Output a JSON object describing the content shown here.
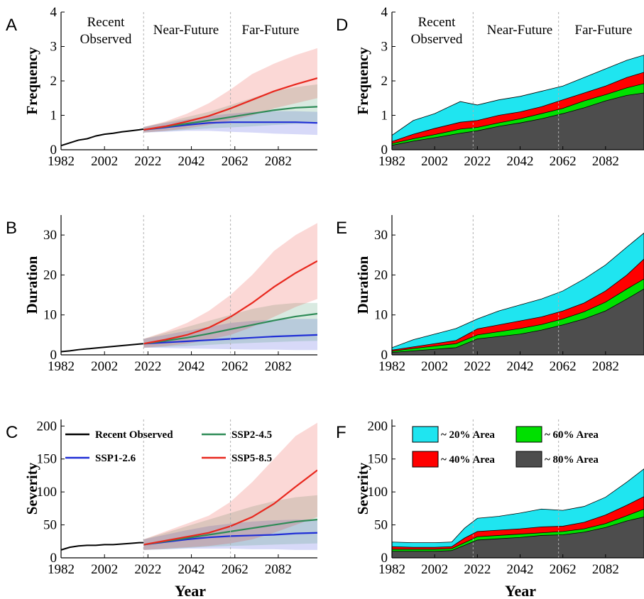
{
  "periods": {
    "recent_line1": "Recent",
    "recent_line2": "Observed",
    "near": "Near-Future",
    "far": "Far-Future"
  },
  "x_label": "Year",
  "colors": {
    "observed": "#000000",
    "ssp126": "#1f2ed6",
    "ssp245": "#2e8b57",
    "ssp585": "#e8281e",
    "area20": "#1fe5f0",
    "area40": "#ff0000",
    "area60": "#00e000",
    "area80": "#4d4d4d"
  },
  "legend_ssp": {
    "observed": "Recent Observed",
    "ssp126": "SSP1-2.6",
    "ssp245": "SSP2-4.5",
    "ssp585": "SSP5-8.5"
  },
  "legend_area": {
    "a20": "~ 20% Area",
    "a40": "~ 40% Area",
    "a60": "~ 60% Area",
    "a80": "~ 80% Area"
  },
  "chart_data": [
    {
      "panel": "A",
      "type": "line",
      "ylabel": "Frequency",
      "xlim": [
        1982,
        2100
      ],
      "ylim": [
        0,
        4
      ],
      "xticks": [
        1982,
        2002,
        2022,
        2042,
        2062,
        2082
      ],
      "yticks": [
        0,
        1,
        2,
        3,
        4
      ],
      "dividers": [
        2020,
        2060
      ],
      "observed": {
        "x": [
          1982,
          1986,
          1990,
          1994,
          1998,
          2002,
          2006,
          2010,
          2014,
          2018,
          2020
        ],
        "y": [
          0.12,
          0.2,
          0.28,
          0.32,
          0.4,
          0.45,
          0.48,
          0.52,
          0.55,
          0.58,
          0.6
        ]
      },
      "series": [
        {
          "key": "ssp126",
          "name": "SSP1-2.6",
          "x": [
            2020,
            2030,
            2040,
            2050,
            2060,
            2070,
            2080,
            2090,
            2100
          ],
          "y": [
            0.58,
            0.65,
            0.72,
            0.78,
            0.8,
            0.8,
            0.8,
            0.8,
            0.78
          ],
          "lo": [
            0.5,
            0.52,
            0.55,
            0.55,
            0.52,
            0.5,
            0.47,
            0.45,
            0.43
          ],
          "hi": [
            0.66,
            0.78,
            0.88,
            0.98,
            1.05,
            1.1,
            1.12,
            1.12,
            1.1
          ]
        },
        {
          "key": "ssp245",
          "name": "SSP2-4.5",
          "x": [
            2020,
            2030,
            2040,
            2050,
            2060,
            2070,
            2080,
            2090,
            2100
          ],
          "y": [
            0.58,
            0.67,
            0.76,
            0.85,
            0.95,
            1.05,
            1.15,
            1.22,
            1.25
          ],
          "lo": [
            0.5,
            0.54,
            0.58,
            0.62,
            0.65,
            0.68,
            0.72,
            0.75,
            0.78
          ],
          "hi": [
            0.66,
            0.8,
            0.95,
            1.1,
            1.3,
            1.5,
            1.7,
            1.82,
            1.9
          ]
        },
        {
          "key": "ssp585",
          "name": "SSP5-8.5",
          "x": [
            2020,
            2030,
            2040,
            2050,
            2060,
            2070,
            2080,
            2090,
            2100
          ],
          "y": [
            0.58,
            0.68,
            0.82,
            0.98,
            1.2,
            1.45,
            1.7,
            1.9,
            2.08
          ],
          "lo": [
            0.5,
            0.55,
            0.62,
            0.72,
            0.85,
            1.0,
            1.2,
            1.35,
            1.5
          ],
          "hi": [
            0.66,
            0.82,
            1.05,
            1.35,
            1.75,
            2.2,
            2.5,
            2.75,
            2.95
          ]
        }
      ]
    },
    {
      "panel": "B",
      "type": "line",
      "ylabel": "Duration",
      "xlim": [
        1982,
        2100
      ],
      "ylim": [
        0,
        35
      ],
      "xticks": [
        1982,
        2002,
        2022,
        2042,
        2062,
        2082
      ],
      "yticks": [
        0,
        10,
        20,
        30
      ],
      "dividers": [
        2020,
        2060
      ],
      "observed": {
        "x": [
          1982,
          1986,
          1990,
          1994,
          1998,
          2002,
          2006,
          2010,
          2014,
          2018,
          2020
        ],
        "y": [
          0.8,
          1.0,
          1.3,
          1.5,
          1.7,
          1.9,
          2.1,
          2.3,
          2.5,
          2.7,
          2.8
        ]
      },
      "series": [
        {
          "key": "ssp126",
          "name": "SSP1-2.6",
          "x": [
            2020,
            2030,
            2040,
            2050,
            2060,
            2070,
            2080,
            2090,
            2100
          ],
          "y": [
            2.8,
            3.1,
            3.4,
            3.7,
            4.0,
            4.3,
            4.6,
            4.8,
            5.0
          ],
          "lo": [
            1.8,
            1.7,
            1.6,
            1.5,
            1.4,
            1.3,
            1.3,
            1.2,
            1.2
          ],
          "hi": [
            4.0,
            5.0,
            6.0,
            7.0,
            8.0,
            8.5,
            8.8,
            9.0,
            9.0
          ]
        },
        {
          "key": "ssp245",
          "name": "SSP2-4.5",
          "x": [
            2020,
            2030,
            2040,
            2050,
            2060,
            2070,
            2080,
            2090,
            2100
          ],
          "y": [
            2.8,
            3.5,
            4.3,
            5.3,
            6.4,
            7.5,
            8.6,
            9.6,
            10.3
          ],
          "lo": [
            1.8,
            2.0,
            2.2,
            2.5,
            2.8,
            3.0,
            3.2,
            3.4,
            3.5
          ],
          "hi": [
            4.0,
            5.5,
            7.0,
            8.5,
            10.0,
            11.5,
            12.5,
            13.0,
            13.0
          ]
        },
        {
          "key": "ssp585",
          "name": "SSP5-8.5",
          "x": [
            2020,
            2030,
            2040,
            2050,
            2060,
            2070,
            2080,
            2090,
            2100
          ],
          "y": [
            2.8,
            3.8,
            5.0,
            6.8,
            9.5,
            13.0,
            17.0,
            20.5,
            23.5
          ],
          "lo": [
            1.8,
            2.2,
            2.8,
            3.8,
            5.0,
            7.0,
            9.5,
            12.0,
            14.0
          ],
          "hi": [
            4.0,
            5.8,
            8.0,
            11.0,
            15.0,
            20.0,
            26.0,
            30.0,
            33.0
          ]
        }
      ]
    },
    {
      "panel": "C",
      "type": "line",
      "ylabel": "Severity",
      "xlim": [
        1982,
        2100
      ],
      "ylim": [
        0,
        210
      ],
      "xticks": [
        1982,
        2002,
        2022,
        2042,
        2062,
        2082
      ],
      "yticks": [
        0,
        50,
        100,
        150,
        200
      ],
      "dividers": [
        2020,
        2060
      ],
      "observed": {
        "x": [
          1982,
          1986,
          1990,
          1994,
          1998,
          2002,
          2006,
          2010,
          2014,
          2018,
          2020
        ],
        "y": [
          12,
          16,
          18,
          19,
          19,
          20,
          20,
          21,
          22,
          23,
          23
        ]
      },
      "series": [
        {
          "key": "ssp126",
          "name": "SSP1-2.6",
          "x": [
            2020,
            2030,
            2040,
            2050,
            2060,
            2070,
            2080,
            2090,
            2100
          ],
          "y": [
            20,
            24,
            28,
            31,
            33,
            34,
            35,
            37,
            38
          ],
          "lo": [
            12,
            13,
            14,
            14,
            14,
            13,
            13,
            12,
            12
          ],
          "hi": [
            28,
            35,
            42,
            48,
            52,
            55,
            57,
            58,
            58
          ]
        },
        {
          "key": "ssp245",
          "name": "SSP2-4.5",
          "x": [
            2020,
            2030,
            2040,
            2050,
            2060,
            2070,
            2080,
            2090,
            2100
          ],
          "y": [
            20,
            25,
            30,
            35,
            40,
            45,
            50,
            55,
            58
          ],
          "lo": [
            12,
            13,
            15,
            17,
            18,
            19,
            20,
            21,
            22
          ],
          "hi": [
            28,
            38,
            48,
            58,
            68,
            78,
            86,
            92,
            95
          ]
        },
        {
          "key": "ssp585",
          "name": "SSP5-8.5",
          "x": [
            2020,
            2030,
            2040,
            2050,
            2060,
            2070,
            2080,
            2090,
            2100
          ],
          "y": [
            20,
            26,
            32,
            38,
            48,
            62,
            82,
            108,
            133
          ],
          "lo": [
            12,
            14,
            16,
            18,
            22,
            28,
            38,
            50,
            62
          ],
          "hi": [
            28,
            40,
            52,
            64,
            85,
            115,
            150,
            185,
            205
          ]
        }
      ]
    },
    {
      "panel": "D",
      "type": "area",
      "ylabel": "Frequency",
      "xlim": [
        1982,
        2100
      ],
      "ylim": [
        0,
        4
      ],
      "xticks": [
        1982,
        2002,
        2022,
        2042,
        2062,
        2082
      ],
      "yticks": [
        0,
        1,
        2,
        3,
        4
      ],
      "dividers": [
        2020,
        2060
      ],
      "x": [
        1982,
        1992,
        2002,
        2014,
        2022,
        2032,
        2042,
        2052,
        2062,
        2072,
        2082,
        2092,
        2100
      ],
      "layers": [
        {
          "key": "a20",
          "top": [
            0.42,
            0.85,
            1.05,
            1.4,
            1.3,
            1.45,
            1.55,
            1.7,
            1.85,
            2.1,
            2.35,
            2.6,
            2.75
          ]
        },
        {
          "key": "a40",
          "top": [
            0.24,
            0.45,
            0.62,
            0.8,
            0.85,
            1.0,
            1.1,
            1.25,
            1.45,
            1.65,
            1.85,
            2.1,
            2.25
          ]
        },
        {
          "key": "a60",
          "top": [
            0.18,
            0.32,
            0.44,
            0.6,
            0.65,
            0.78,
            0.9,
            1.05,
            1.2,
            1.42,
            1.6,
            1.8,
            1.92
          ]
        },
        {
          "key": "a80",
          "top": [
            0.13,
            0.25,
            0.35,
            0.48,
            0.55,
            0.68,
            0.78,
            0.9,
            1.05,
            1.22,
            1.42,
            1.58,
            1.65
          ]
        }
      ]
    },
    {
      "panel": "E",
      "type": "area",
      "ylabel": "Duration",
      "xlim": [
        1982,
        2100
      ],
      "ylim": [
        0,
        35
      ],
      "xticks": [
        1982,
        2002,
        2022,
        2042,
        2062,
        2082
      ],
      "yticks": [
        0,
        10,
        20,
        30
      ],
      "dividers": [
        2020,
        2060
      ],
      "x": [
        1982,
        1992,
        2002,
        2012,
        2022,
        2032,
        2042,
        2052,
        2062,
        2072,
        2082,
        2092,
        2100
      ],
      "layers": [
        {
          "key": "a20",
          "top": [
            1.8,
            3.8,
            5.2,
            6.6,
            9.0,
            11.0,
            12.5,
            14.0,
            16.0,
            19.0,
            22.5,
            27.0,
            30.5
          ]
        },
        {
          "key": "a40",
          "top": [
            1.2,
            2.0,
            2.8,
            3.6,
            6.5,
            7.5,
            8.5,
            9.5,
            11.0,
            13.0,
            16.0,
            20.0,
            24.0
          ]
        },
        {
          "key": "a60",
          "top": [
            0.9,
            1.6,
            2.2,
            2.8,
            5.0,
            5.8,
            6.6,
            7.6,
            9.0,
            10.8,
            13.2,
            16.5,
            19.0
          ]
        },
        {
          "key": "a80",
          "top": [
            0.6,
            1.0,
            1.4,
            1.8,
            4.0,
            4.6,
            5.2,
            6.2,
            7.5,
            9.0,
            11.0,
            14.0,
            16.5
          ]
        }
      ]
    },
    {
      "panel": "F",
      "type": "area",
      "ylabel": "Severity",
      "xlim": [
        1982,
        2100
      ],
      "ylim": [
        0,
        210
      ],
      "xticks": [
        1982,
        2002,
        2022,
        2042,
        2062,
        2082
      ],
      "yticks": [
        0,
        50,
        100,
        150,
        200
      ],
      "dividers": [
        2020,
        2060
      ],
      "x": [
        1982,
        1992,
        2002,
        2010,
        2016,
        2022,
        2032,
        2042,
        2052,
        2062,
        2072,
        2082,
        2092,
        2100
      ],
      "layers": [
        {
          "key": "a20",
          "top": [
            24,
            23,
            23,
            24,
            45,
            60,
            63,
            68,
            74,
            72,
            78,
            92,
            115,
            135
          ]
        },
        {
          "key": "a40",
          "top": [
            17,
            16,
            16,
            17,
            30,
            40,
            42,
            44,
            47,
            48,
            54,
            65,
            80,
            93
          ]
        },
        {
          "key": "a60",
          "top": [
            13,
            13,
            13,
            14,
            23,
            32,
            34,
            36,
            38,
            40,
            44,
            52,
            64,
            74
          ]
        },
        {
          "key": "a80",
          "top": [
            10,
            10,
            10,
            11,
            19,
            27,
            29,
            31,
            34,
            35,
            39,
            46,
            56,
            62
          ]
        }
      ]
    }
  ]
}
